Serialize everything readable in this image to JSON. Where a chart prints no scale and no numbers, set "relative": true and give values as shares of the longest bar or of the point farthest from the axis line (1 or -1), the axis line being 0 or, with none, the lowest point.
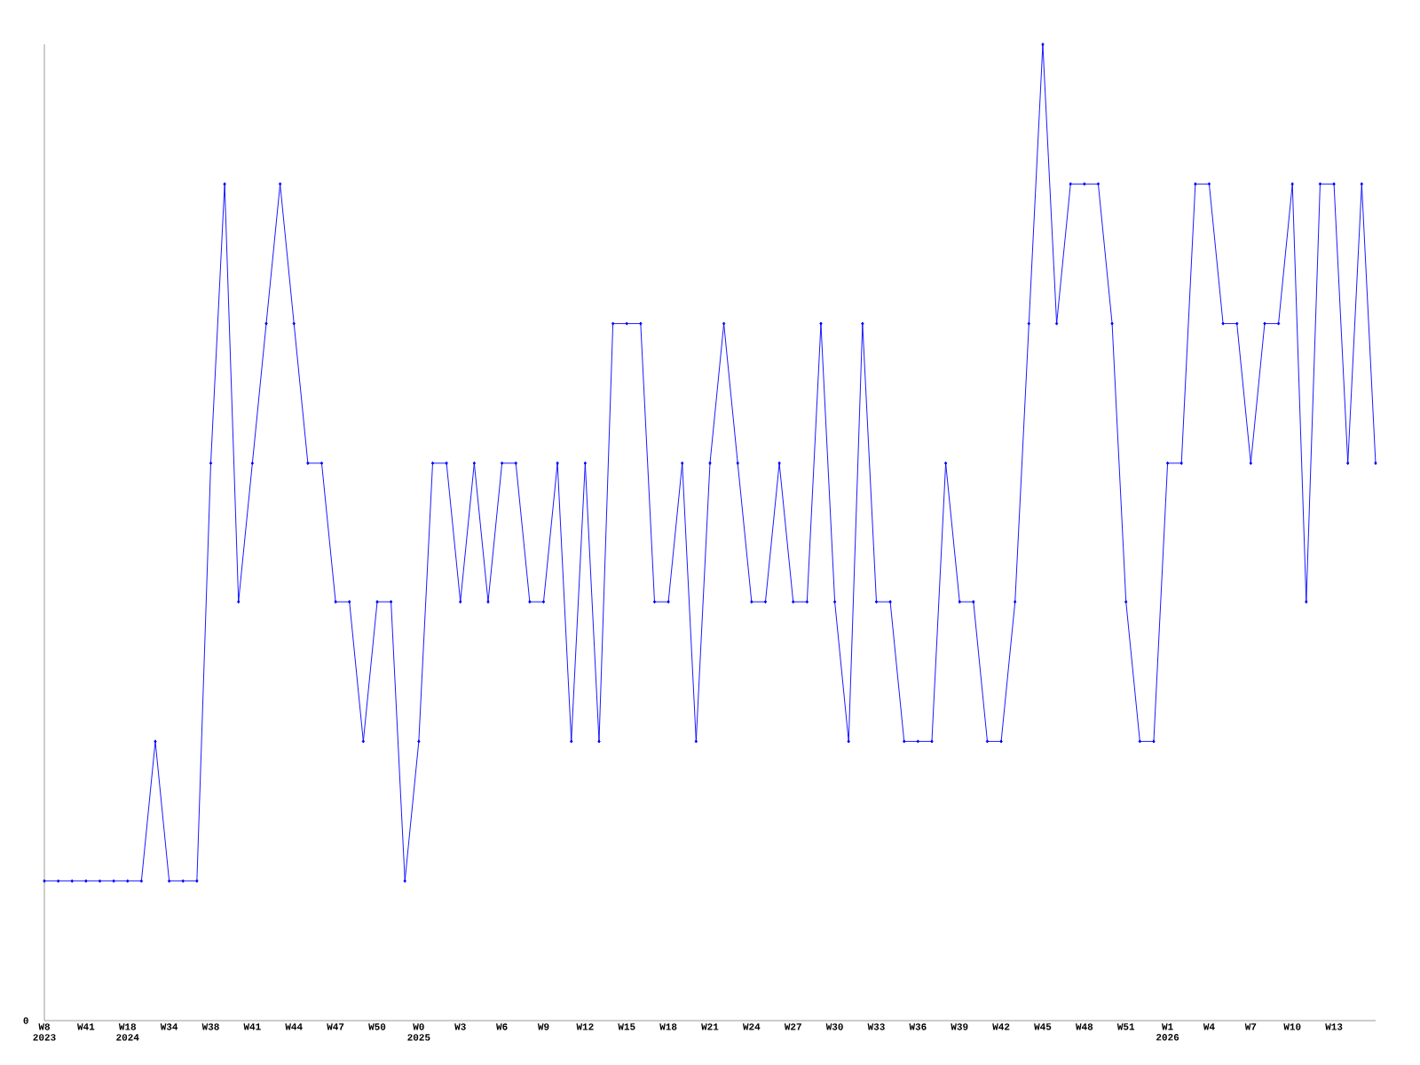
{
  "chart_data": {
    "type": "line",
    "relative": true,
    "color": "#0000ff",
    "marker": "diamond",
    "line_style": "solid",
    "grid": false,
    "annotations": [
      "0"
    ],
    "categories": [
      "W8 2023",
      null,
      null,
      "W41",
      null,
      null,
      "W18 2024",
      null,
      null,
      "W34",
      null,
      null,
      "W38",
      null,
      null,
      "W41",
      null,
      null,
      "W44",
      null,
      null,
      "W47",
      null,
      null,
      "W50",
      null,
      null,
      "W0 2025",
      null,
      null,
      "W3",
      null,
      null,
      "W6",
      null,
      null,
      "W9",
      null,
      null,
      "W12",
      null,
      null,
      "W15",
      null,
      null,
      "W18",
      null,
      null,
      "W21",
      null,
      null,
      "W24",
      null,
      null,
      "W27",
      null,
      null,
      "W30",
      null,
      null,
      "W33",
      null,
      null,
      "W36",
      null,
      null,
      "W39",
      null,
      null,
      "W42",
      null,
      null,
      "W45",
      null,
      null,
      "W48",
      null,
      null,
      "W51",
      null,
      null,
      "W1 2026",
      null,
      null,
      "W4",
      null,
      null,
      "W7",
      null,
      null,
      "W10",
      null,
      null,
      "W13",
      null,
      null,
      null
    ],
    "values": [
      0.143,
      0.143,
      0.143,
      0.143,
      0.143,
      0.143,
      0.143,
      0.143,
      0.286,
      0.143,
      0.143,
      0.143,
      0.571,
      0.857,
      0.429,
      0.571,
      0.714,
      0.857,
      0.714,
      0.571,
      0.571,
      0.429,
      0.429,
      0.286,
      0.429,
      0.429,
      0.143,
      0.286,
      0.571,
      0.571,
      0.429,
      0.571,
      0.429,
      0.571,
      0.571,
      0.429,
      0.429,
      0.571,
      0.286,
      0.571,
      0.286,
      0.714,
      0.714,
      0.714,
      0.429,
      0.429,
      0.571,
      0.286,
      0.571,
      0.714,
      0.571,
      0.429,
      0.429,
      0.571,
      0.429,
      0.429,
      0.714,
      0.429,
      0.286,
      0.714,
      0.429,
      0.429,
      0.286,
      0.286,
      0.286,
      0.571,
      0.429,
      0.429,
      0.286,
      0.286,
      0.429,
      0.714,
      1,
      0.714,
      0.857,
      0.857,
      0.857,
      0.714,
      0.429,
      0.286,
      0.286,
      0.571,
      0.571,
      0.857,
      0.857,
      0.714,
      0.714,
      0.571,
      0.714,
      0.714,
      0.857,
      0.429,
      0.857,
      0.857,
      0.571,
      0.857,
      0.571
    ]
  }
}
